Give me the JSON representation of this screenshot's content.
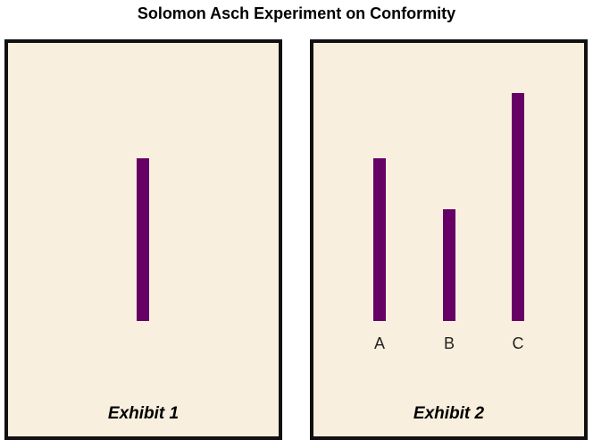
{
  "title": "Solomon Asch Experiment on Conformity",
  "colors": {
    "bar": "#660066",
    "panel_background": "#f9efdf",
    "panel_border": "#111111"
  },
  "exhibit1": {
    "label": "Exhibit 1"
  },
  "exhibit2": {
    "label": "Exhibit 2",
    "options": [
      {
        "label": "A"
      },
      {
        "label": "B"
      },
      {
        "label": "C"
      }
    ]
  }
}
